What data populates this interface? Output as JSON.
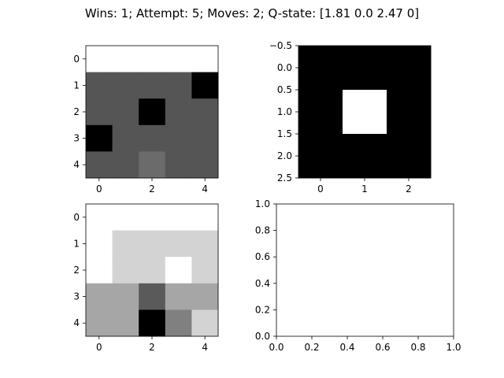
{
  "figure": {
    "title": "Wins: 1; Attempt: 5; Moves: 2; Q-state: [1.81 0.0 2.47 0]"
  },
  "chart_data": [
    {
      "type": "heatmap",
      "name": "grid-top-left",
      "colormap": "gray",
      "x_ticks": [
        "0",
        "2",
        "4"
      ],
      "y_ticks": [
        "0",
        "1",
        "2",
        "3",
        "4"
      ],
      "cells": [
        [
          "#ffffff",
          "#ffffff",
          "#ffffff",
          "#ffffff",
          "#ffffff"
        ],
        [
          "#555555",
          "#555555",
          "#555555",
          "#555555",
          "#000000"
        ],
        [
          "#555555",
          "#555555",
          "#000000",
          "#555555",
          "#555555"
        ],
        [
          "#000000",
          "#555555",
          "#555555",
          "#555555",
          "#555555"
        ],
        [
          "#555555",
          "#555555",
          "#6b6b6b",
          "#555555",
          "#555555"
        ]
      ]
    },
    {
      "type": "heatmap",
      "name": "grid-top-right",
      "colormap": "gray",
      "x_ticks": [
        "0",
        "1",
        "2"
      ],
      "y_ticks": [
        "−0.5",
        "0.0",
        "0.5",
        "1.0",
        "1.5",
        "2.0",
        "2.5"
      ],
      "cells": [
        [
          "#000000",
          "#000000",
          "#000000"
        ],
        [
          "#000000",
          "#ffffff",
          "#000000"
        ],
        [
          "#000000",
          "#000000",
          "#000000"
        ]
      ]
    },
    {
      "type": "heatmap",
      "name": "grid-bottom-left",
      "colormap": "gray",
      "x_ticks": [
        "0",
        "2",
        "4"
      ],
      "y_ticks": [
        "0",
        "1",
        "2",
        "3",
        "4"
      ],
      "cells": [
        [
          "#ffffff",
          "#ffffff",
          "#ffffff",
          "#ffffff",
          "#ffffff"
        ],
        [
          "#ffffff",
          "#d3d3d3",
          "#d3d3d3",
          "#d3d3d3",
          "#d3d3d3"
        ],
        [
          "#ffffff",
          "#d3d3d3",
          "#d3d3d3",
          "#ffffff",
          "#d3d3d3"
        ],
        [
          "#a6a6a6",
          "#a6a6a6",
          "#5a5a5a",
          "#a6a6a6",
          "#a6a6a6"
        ],
        [
          "#a6a6a6",
          "#a6a6a6",
          "#000000",
          "#808080",
          "#d3d3d3"
        ]
      ]
    },
    {
      "type": "scatter",
      "name": "empty-axes",
      "x": [],
      "y": [],
      "xlim": [
        0,
        1
      ],
      "ylim": [
        0,
        1
      ],
      "x_ticks": [
        "0.0",
        "0.2",
        "0.4",
        "0.6",
        "0.8",
        "1.0"
      ],
      "y_ticks": [
        "0.0",
        "0.2",
        "0.4",
        "0.6",
        "0.8",
        "1.0"
      ]
    }
  ]
}
